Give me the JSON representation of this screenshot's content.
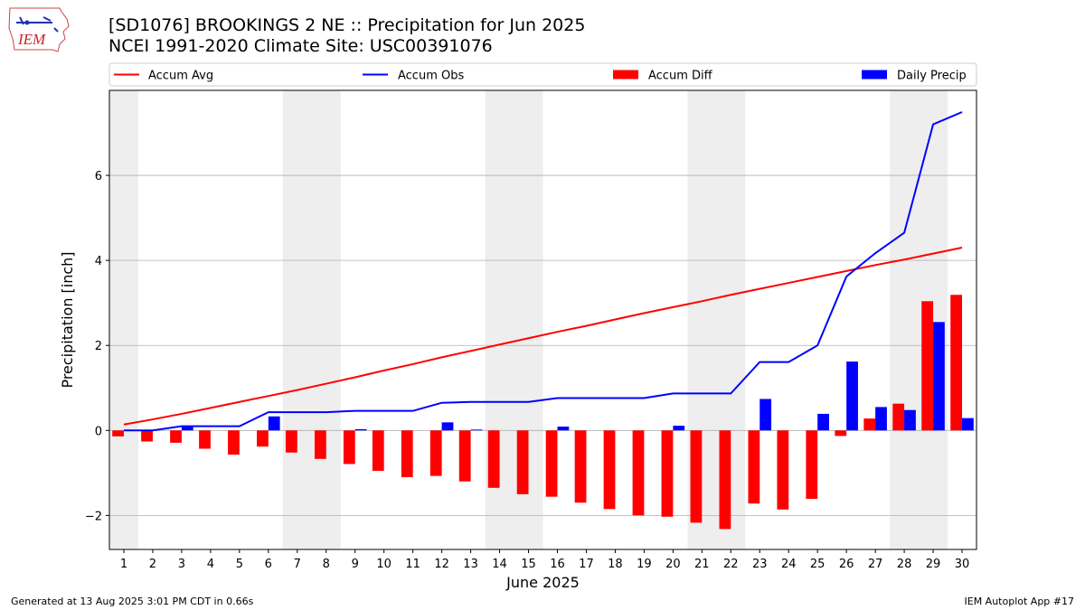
{
  "header": {
    "title_line1": "[SD1076] BROOKINGS 2 NE :: Precipitation for Jun 2025",
    "title_line2": "NCEI 1991-2020 Climate Site: USC00391076",
    "logo_text": "IEM"
  },
  "footer": {
    "left": "Generated at 13 Aug 2025 3:01 PM CDT in 0.66s",
    "right": "IEM Autoplot App #17"
  },
  "colors": {
    "avg": "#ff0000",
    "obs": "#0000ff",
    "diff": "#ff0000",
    "daily": "#0000ff",
    "weekend_shade": "#eeeeee",
    "grid": "#b0b0b0"
  },
  "legend": {
    "placement": "top",
    "items": [
      {
        "label": "Accum Avg",
        "kind": "line",
        "color": "#ff0000"
      },
      {
        "label": "Accum Obs",
        "kind": "line",
        "color": "#0000ff"
      },
      {
        "label": "Accum Diff",
        "kind": "bar",
        "color": "#ff0000"
      },
      {
        "label": "Daily Precip",
        "kind": "bar",
        "color": "#0000ff"
      }
    ]
  },
  "chart_data": {
    "type": "bar",
    "xlabel": "June 2025",
    "ylabel": "Precipitation [inch]",
    "xlim": [
      0.5,
      30.5
    ],
    "ylim": [
      -2.8,
      8.0
    ],
    "yticks": [
      -2,
      0,
      2,
      4,
      6
    ],
    "grid": "horizontal",
    "x": [
      1,
      2,
      3,
      4,
      5,
      6,
      7,
      8,
      9,
      10,
      11,
      12,
      13,
      14,
      15,
      16,
      17,
      18,
      19,
      20,
      21,
      22,
      23,
      24,
      25,
      26,
      27,
      28,
      29,
      30
    ],
    "weekend_shading": [
      [
        0.5,
        1.5
      ],
      [
        6.5,
        8.5
      ],
      [
        13.5,
        15.5
      ],
      [
        20.5,
        22.5
      ],
      [
        27.5,
        29.5
      ]
    ],
    "series": [
      {
        "name": "Accum Avg",
        "type": "line",
        "values": [
          0.14,
          0.26,
          0.39,
          0.53,
          0.67,
          0.81,
          0.95,
          1.1,
          1.25,
          1.41,
          1.56,
          1.72,
          1.87,
          2.02,
          2.17,
          2.32,
          2.46,
          2.61,
          2.76,
          2.9,
          3.04,
          3.19,
          3.33,
          3.47,
          3.61,
          3.75,
          3.89,
          4.02,
          4.16,
          4.3
        ]
      },
      {
        "name": "Accum Obs",
        "type": "line",
        "values": [
          0.0,
          0.0,
          0.1,
          0.1,
          0.1,
          0.43,
          0.43,
          0.43,
          0.46,
          0.46,
          0.46,
          0.65,
          0.67,
          0.67,
          0.67,
          0.76,
          0.76,
          0.76,
          0.76,
          0.87,
          0.87,
          0.87,
          1.61,
          1.61,
          2.0,
          3.62,
          4.17,
          4.65,
          7.2,
          7.49
        ]
      },
      {
        "name": "Accum Diff",
        "type": "bar",
        "values": [
          -0.14,
          -0.26,
          -0.29,
          -0.43,
          -0.57,
          -0.38,
          -0.52,
          -0.67,
          -0.79,
          -0.95,
          -1.1,
          -1.07,
          -1.2,
          -1.35,
          -1.5,
          -1.56,
          -1.7,
          -1.85,
          -2.0,
          -2.03,
          -2.17,
          -2.32,
          -1.72,
          -1.86,
          -1.61,
          -0.13,
          0.28,
          0.63,
          3.04,
          3.19
        ]
      },
      {
        "name": "Daily Precip",
        "type": "bar",
        "values": [
          0.0,
          0.0,
          0.1,
          0.0,
          0.0,
          0.33,
          0.0,
          0.0,
          0.03,
          0.0,
          0.0,
          0.19,
          0.02,
          0.0,
          0.0,
          0.09,
          0.0,
          0.0,
          0.0,
          0.11,
          0.0,
          0.0,
          0.74,
          0.0,
          0.39,
          1.62,
          0.55,
          0.48,
          2.55,
          0.29
        ]
      }
    ]
  }
}
